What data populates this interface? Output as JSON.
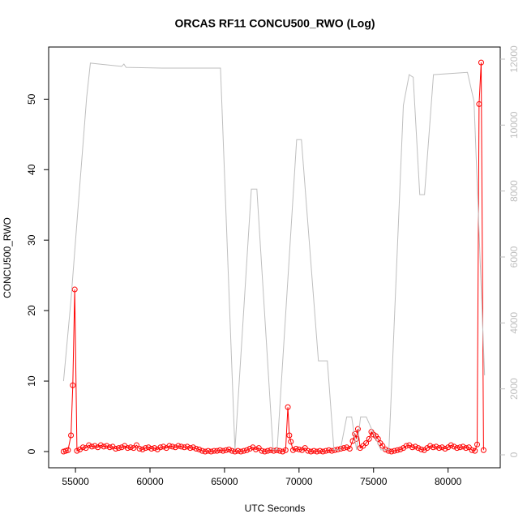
{
  "chart_data": {
    "type": "line",
    "title": "ORCAS RF11 CONCU500_RWO (Log)",
    "x_label": "UTC Seconds",
    "y_label": "CONCU500_RWO",
    "xlim": [
      53200,
      83500
    ],
    "xticks": [
      55000,
      60000,
      65000,
      70000,
      75000,
      80000
    ],
    "ylim": [
      -2.3,
      57.4
    ],
    "yticks": [
      0,
      10,
      20,
      30,
      40,
      50
    ],
    "y2lim": [
      -393,
      12368
    ],
    "y2ticks": [
      0,
      2000,
      4000,
      6000,
      8000,
      10000,
      12000
    ],
    "series": [
      {
        "color": "#ff0000",
        "markers": true,
        "x": [
          54200,
          54350,
          54500,
          54700,
          54820,
          54950,
          55100,
          55300,
          55500,
          55700,
          55900,
          56100,
          56300,
          56500,
          56700,
          56900,
          57100,
          57300,
          57500,
          57700,
          57900,
          58100,
          58300,
          58500,
          58700,
          58900,
          59100,
          59300,
          59500,
          59700,
          59900,
          60100,
          60300,
          60500,
          60700,
          60900,
          61100,
          61300,
          61500,
          61700,
          61900,
          62100,
          62300,
          62500,
          62700,
          62900,
          63100,
          63300,
          63500,
          63700,
          63900,
          64100,
          64300,
          64500,
          64700,
          64900,
          65100,
          65300,
          65500,
          65700,
          65900,
          66100,
          66300,
          66500,
          66700,
          66900,
          67100,
          67300,
          67500,
          67700,
          67900,
          68100,
          68300,
          68500,
          68700,
          68900,
          69100,
          69250,
          69350,
          69450,
          69600,
          69800,
          70000,
          70200,
          70400,
          70600,
          70800,
          71000,
          71200,
          71400,
          71600,
          71800,
          72000,
          72200,
          72400,
          72600,
          72800,
          73000,
          73200,
          73400,
          73600,
          73750,
          73850,
          73950,
          74100,
          74300,
          74500,
          74700,
          74850,
          75000,
          75150,
          75300,
          75450,
          75600,
          75800,
          76000,
          76200,
          76400,
          76600,
          76800,
          77000,
          77200,
          77400,
          77600,
          77800,
          78000,
          78200,
          78400,
          78600,
          78800,
          79000,
          79200,
          79400,
          79600,
          79800,
          80000,
          80200,
          80400,
          80600,
          80800,
          81000,
          81200,
          81400,
          81600,
          81800,
          81950,
          82080,
          82220,
          82380
        ],
        "values": [
          0.0,
          0.1,
          0.2,
          2.3,
          9.4,
          23.0,
          0.1,
          0.3,
          0.6,
          0.5,
          0.9,
          0.7,
          0.8,
          0.6,
          0.9,
          0.7,
          0.8,
          0.6,
          0.7,
          0.4,
          0.5,
          0.6,
          0.8,
          0.5,
          0.6,
          0.5,
          0.9,
          0.4,
          0.3,
          0.5,
          0.6,
          0.4,
          0.5,
          0.3,
          0.6,
          0.7,
          0.5,
          0.8,
          0.7,
          0.6,
          0.8,
          0.7,
          0.6,
          0.7,
          0.5,
          0.6,
          0.4,
          0.3,
          0.1,
          0.0,
          0.1,
          0.0,
          0.1,
          0.1,
          0.2,
          0.1,
          0.2,
          0.3,
          0.1,
          0.0,
          0.1,
          0.0,
          0.1,
          0.2,
          0.4,
          0.6,
          0.3,
          0.5,
          0.1,
          0.0,
          0.1,
          0.2,
          0.1,
          0.2,
          0.1,
          0.0,
          0.2,
          6.3,
          2.3,
          1.4,
          0.2,
          0.4,
          0.3,
          0.2,
          0.5,
          0.1,
          0.0,
          0.1,
          0.0,
          0.1,
          0.0,
          0.1,
          0.2,
          0.1,
          0.2,
          0.3,
          0.4,
          0.5,
          0.6,
          0.4,
          1.5,
          2.5,
          1.8,
          3.2,
          0.5,
          0.8,
          1.2,
          1.8,
          2.8,
          2.4,
          2.2,
          1.8,
          1.2,
          0.8,
          0.3,
          0.1,
          0.0,
          0.1,
          0.2,
          0.3,
          0.5,
          0.8,
          0.9,
          0.6,
          0.7,
          0.5,
          0.3,
          0.2,
          0.5,
          0.8,
          0.6,
          0.7,
          0.5,
          0.6,
          0.4,
          0.6,
          0.9,
          0.7,
          0.5,
          0.6,
          0.7,
          0.5,
          0.6,
          0.2,
          0.1,
          1.0,
          49.3,
          55.2,
          0.2
        ]
      },
      {
        "color": "#bebebe",
        "markers": false,
        "axis": "y2",
        "x": [
          54200,
          54700,
          55200,
          55750,
          56000,
          58100,
          58250,
          58400,
          60800,
          64730,
          65700,
          66800,
          66970,
          67170,
          68260,
          68530,
          69840,
          70160,
          71300,
          71900,
          72340,
          72770,
          73200,
          73530,
          73860,
          74130,
          74510,
          75490,
          76030,
          77000,
          77390,
          77660,
          78100,
          78420,
          79020,
          81300,
          81740,
          82450
        ],
        "values": [
          2237,
          4700,
          7650,
          10840,
          11880,
          11780,
          11850,
          11750,
          11730,
          11730,
          150,
          8060,
          8060,
          8060,
          150,
          150,
          9560,
          9560,
          2850,
          2850,
          150,
          150,
          1150,
          1150,
          150,
          1150,
          1150,
          150,
          150,
          10600,
          11530,
          11450,
          7890,
          7890,
          11530,
          11600,
          10720,
          2410
        ]
      }
    ]
  }
}
